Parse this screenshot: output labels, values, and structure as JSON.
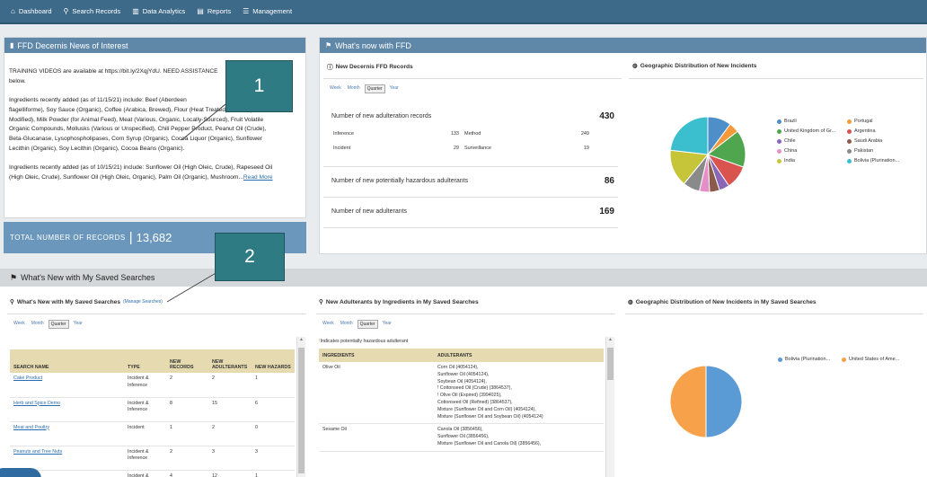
{
  "nav": {
    "items": [
      {
        "label": "Dashboard",
        "icon": "home-icon"
      },
      {
        "label": "Search Records",
        "icon": "search-icon"
      },
      {
        "label": "Data Analytics",
        "icon": "bar-chart-icon"
      },
      {
        "label": "Reports",
        "icon": "document-icon"
      },
      {
        "label": "Management",
        "icon": "sliders-icon"
      }
    ]
  },
  "news": {
    "title": "FFD Decernis News of Interest",
    "p1": "TRAINING VIDEOS are available at https://bit.ly/2XqjYdU. NEED ASSISTANCE",
    "p1b": "below.",
    "p2_l1": "Ingredients recently added (as of 11/15/21) include: Beef (Aberdeen",
    "p2_l2": "flagelliforme), Soy Sauce (Organic), Coffee (Arabica, Brewed), Flour (Heat Treated), Starch (Corn,",
    "p2_l3": "Modified), Milk Powder (for Animal Feed), Meat (Various, Organic, Locally-Sourced), Fruit Volatile",
    "p2_l4": "Organic Compounds, Mollusks (Various or Unspecified), Chili Pepper Product, Peanut Oil (Crude),",
    "p2_l5": "Beta-Glucanase, Lysophospholipases, Corn Syrup (Organic), Cocoa Liquor (Organic), Sunflower",
    "p2_l6": "Lecithin (Organic), Soy Lecithin (Organic), Cocoa Beans (Organic).",
    "p3_l1": "Ingredients recently added (as of 10/15/21) include: Sunflower Oil (High Oleic, Crude), Rapeseed Oil",
    "p3_l2": "(High Oleic, Crude), Sunflower Oil (High Oleic, Organic), Palm Oil (Organic), Mushroom...",
    "read_more": "Read More"
  },
  "total": {
    "label": "TOTAL NUMBER OF RECORDS",
    "sep": "|",
    "value": "13,682"
  },
  "whatsnew": {
    "title": "What's now with FFD",
    "records_title": "New Decernis FFD Records",
    "geo_title": "Geographic Distribution of New Incidents",
    "tabs": [
      "Week",
      "Month",
      "Quarter",
      "Year"
    ],
    "active_tab": "Quarter",
    "adulteration_label": "Number of new adulteration records",
    "adulteration_value": "430",
    "inference_label": "Inference",
    "inference_value": "133",
    "method_label": "Method",
    "method_value": "249",
    "incident_label": "Incident",
    "incident_value": "29",
    "surveillance_label": "Surveillance",
    "surveillance_value": "19",
    "hazardous_label": "Number of new potentially hazardous adulterants",
    "hazardous_value": "86",
    "adulterants_label": "Number of new adulterants",
    "adulterants_value": "169"
  },
  "geo_legend": [
    {
      "name": "Brazil",
      "color": "#4e8fc9"
    },
    {
      "name": "Portugal",
      "color": "#f39a3c"
    },
    {
      "name": "United Kingdom of Gr...",
      "color": "#4fa64f"
    },
    {
      "name": "Argentina",
      "color": "#d9534f"
    },
    {
      "name": "Chile",
      "color": "#8a66b8"
    },
    {
      "name": "Saudi Arabia",
      "color": "#8c5a4a"
    },
    {
      "name": "China",
      "color": "#e48fc7"
    },
    {
      "name": "Pakistan",
      "color": "#8a8a8a"
    },
    {
      "name": "India",
      "color": "#c6c53a"
    },
    {
      "name": "Bolivia (Plurination...",
      "color": "#3bbfcf"
    }
  ],
  "saved": {
    "title": "What's New with My Saved Searches",
    "list_title": "What's New with My Saved Searches",
    "manage_link": "(Manage Searches)",
    "tabs": [
      "Week",
      "Month",
      "Quarter",
      "Year"
    ],
    "active_tab": "Quarter",
    "columns": [
      "SEARCH NAME",
      "TYPE",
      "NEW RECORDS",
      "NEW ADULTERANTS",
      "NEW HAZARDS"
    ],
    "rows": [
      {
        "name": "Cake Product",
        "type": "Incident & Inference",
        "records": "2",
        "adulterants": "2",
        "hazards": "1"
      },
      {
        "name": "Herb and Spice Demo",
        "type": "Incident & Inference",
        "records": "8",
        "adulterants": "15",
        "hazards": "6"
      },
      {
        "name": "Meat and Poultry",
        "type": "Incident",
        "records": "1",
        "adulterants": "2",
        "hazards": "0"
      },
      {
        "name": "Peanuts and Tree Nuts",
        "type": "Incident & Inference",
        "records": "2",
        "adulterants": "3",
        "hazards": "3"
      },
      {
        "name": "",
        "type": "Incident &",
        "records": "4",
        "adulterants": "12",
        "hazards": "1"
      }
    ],
    "adult_title": "New Adulterants by Ingredients in My Saved Searches",
    "adult_tabs": [
      "Week",
      "Month",
      "Quarter",
      "Year"
    ],
    "hazard_note": "Indicates potentially hazardous adulterant",
    "adult_columns": [
      "INGREDIENTS",
      "ADULTERANTS"
    ],
    "adult_rows": [
      {
        "ingredient": "Olive Oil",
        "adulterants": [
          "Corn Oil (4054124),",
          "Sunflower Oil (4054124),",
          "Soybean Oil (4054124),",
          "! Cottonseed Oil (Crude) (3864537),",
          "! Olive Oil (Expired) (3994025),",
          "Cottonseed Oil (Refined) (3864537),",
          "Mixture (Sunflower Oil and Corn Oil) (4054124),",
          "Mixture (Sunflower Oil and Soybean Oil) (4054124)"
        ]
      },
      {
        "ingredient": "Sesame Oil",
        "adulterants": [
          "Canola Oil (3856456),",
          "Sunflower Oil (3856456),",
          "Mixture (Sunflower Oil and Canola Oil) (3856456),"
        ]
      }
    ],
    "geo_title": "Geographic Distribution of New Incidents in My Saved Searches",
    "geo_legend": [
      {
        "name": "Bolivia (Plurination...",
        "color": "#5b9bd5"
      },
      {
        "name": "United States of Ame...",
        "color": "#f7a14b"
      }
    ]
  },
  "callouts": [
    "1",
    "2"
  ],
  "geo_chart_data": {
    "type": "pie",
    "slices": [
      {
        "name": "Brazil",
        "value": 7,
        "color": "#4e8fc9"
      },
      {
        "name": "Portugal",
        "value": 3,
        "color": "#f39a3c"
      },
      {
        "name": "United Kingdom of Gr...",
        "value": 11,
        "color": "#4fa64f"
      },
      {
        "name": "Argentina",
        "value": 7,
        "color": "#d9534f"
      },
      {
        "name": "Chile",
        "value": 3,
        "color": "#8a66b8"
      },
      {
        "name": "Saudi Arabia",
        "value": 3,
        "color": "#8c5a4a"
      },
      {
        "name": "China",
        "value": 3,
        "color": "#e48fc7"
      },
      {
        "name": "Pakistan",
        "value": 5,
        "color": "#8a8a8a"
      },
      {
        "name": "India",
        "value": 11,
        "color": "#c6c53a"
      },
      {
        "name": "Bolivia (Plurination...",
        "value": 16,
        "color": "#3bbfcf"
      }
    ]
  },
  "saved_geo_chart_data": {
    "type": "pie",
    "slices": [
      {
        "name": "Bolivia (Plurination...",
        "value": 1,
        "color": "#5b9bd5"
      },
      {
        "name": "United States of Ame...",
        "value": 1,
        "color": "#f7a14b"
      }
    ]
  }
}
